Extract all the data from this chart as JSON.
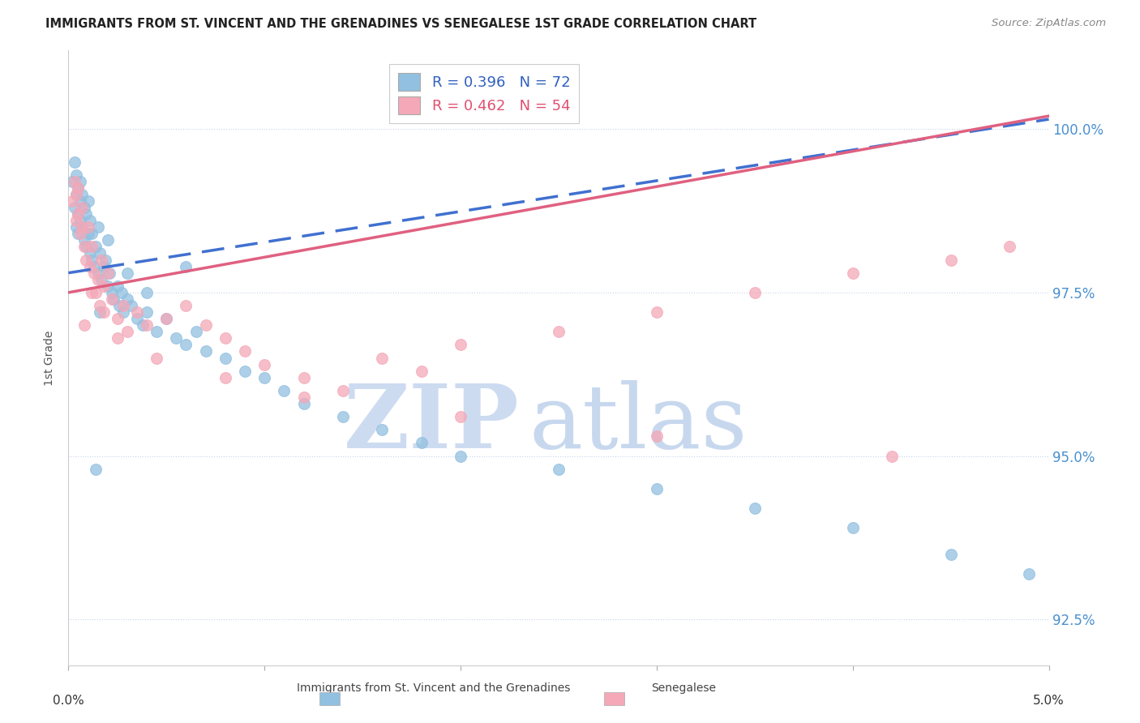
{
  "title": "IMMIGRANTS FROM ST. VINCENT AND THE GRENADINES VS SENEGALESE 1ST GRADE CORRELATION CHART",
  "source": "Source: ZipAtlas.com",
  "ylabel": "1st Grade",
  "yticks": [
    92.5,
    95.0,
    97.5,
    100.0
  ],
  "ytick_labels": [
    "92.5%",
    "95.0%",
    "97.5%",
    "100.0%"
  ],
  "xlim": [
    0.0,
    5.0
  ],
  "ylim": [
    91.8,
    101.2
  ],
  "blue_R": 0.396,
  "blue_N": 72,
  "pink_R": 0.462,
  "pink_N": 54,
  "blue_color": "#92c0e0",
  "pink_color": "#f4a8b8",
  "blue_line_color": "#4070d0",
  "pink_line_color": "#e06080",
  "watermark_zip": "ZIP",
  "watermark_atlas": "atlas",
  "watermark_color_zip": "#c8d8f0",
  "watermark_color_atlas": "#b0c8e8",
  "legend_label_blue": "Immigrants from St. Vincent and the Grenadines",
  "legend_label_pink": "Senegalese",
  "blue_line_x": [
    0.0,
    5.0
  ],
  "blue_line_y": [
    97.8,
    100.15
  ],
  "pink_line_x": [
    0.0,
    5.0
  ],
  "pink_line_y": [
    97.5,
    100.2
  ],
  "blue_x": [
    0.02,
    0.03,
    0.03,
    0.04,
    0.04,
    0.04,
    0.05,
    0.05,
    0.05,
    0.06,
    0.06,
    0.06,
    0.07,
    0.07,
    0.08,
    0.08,
    0.09,
    0.09,
    0.1,
    0.1,
    0.11,
    0.11,
    0.12,
    0.12,
    0.13,
    0.14,
    0.15,
    0.15,
    0.16,
    0.17,
    0.18,
    0.19,
    0.2,
    0.21,
    0.22,
    0.23,
    0.25,
    0.26,
    0.27,
    0.28,
    0.3,
    0.32,
    0.35,
    0.38,
    0.4,
    0.45,
    0.5,
    0.55,
    0.6,
    0.65,
    0.7,
    0.8,
    0.9,
    1.0,
    1.1,
    1.2,
    1.4,
    1.6,
    1.8,
    2.0,
    2.5,
    3.0,
    3.5,
    4.0,
    4.5,
    4.9,
    0.14,
    0.16,
    0.2,
    0.3,
    0.4,
    0.6
  ],
  "blue_y": [
    99.2,
    99.5,
    98.8,
    99.0,
    98.5,
    99.3,
    98.7,
    99.1,
    98.4,
    98.9,
    99.2,
    98.6,
    98.5,
    99.0,
    98.3,
    98.8,
    98.2,
    98.7,
    98.4,
    98.9,
    98.1,
    98.6,
    98.0,
    98.4,
    97.9,
    98.2,
    98.5,
    97.8,
    98.1,
    97.7,
    97.9,
    98.0,
    97.6,
    97.8,
    97.5,
    97.4,
    97.6,
    97.3,
    97.5,
    97.2,
    97.4,
    97.3,
    97.1,
    97.0,
    97.2,
    96.9,
    97.1,
    96.8,
    96.7,
    96.9,
    96.6,
    96.5,
    96.3,
    96.2,
    96.0,
    95.8,
    95.6,
    95.4,
    95.2,
    95.0,
    94.8,
    94.5,
    94.2,
    93.9,
    93.5,
    93.2,
    94.8,
    97.2,
    98.3,
    97.8,
    97.5,
    97.9
  ],
  "pink_x": [
    0.02,
    0.03,
    0.04,
    0.04,
    0.05,
    0.05,
    0.06,
    0.07,
    0.07,
    0.08,
    0.09,
    0.1,
    0.11,
    0.12,
    0.13,
    0.14,
    0.15,
    0.16,
    0.17,
    0.18,
    0.2,
    0.22,
    0.25,
    0.28,
    0.3,
    0.35,
    0.4,
    0.5,
    0.6,
    0.7,
    0.8,
    0.9,
    1.0,
    1.2,
    1.4,
    1.6,
    1.8,
    2.0,
    2.5,
    3.0,
    3.5,
    4.0,
    4.5,
    4.8,
    0.08,
    0.12,
    0.18,
    0.25,
    0.45,
    0.8,
    1.2,
    2.0,
    3.0,
    4.2
  ],
  "pink_y": [
    98.9,
    99.2,
    98.6,
    99.0,
    98.7,
    99.1,
    98.4,
    98.8,
    98.5,
    98.2,
    98.0,
    98.5,
    97.9,
    98.2,
    97.8,
    97.5,
    97.7,
    97.3,
    98.0,
    97.6,
    97.8,
    97.4,
    97.1,
    97.3,
    96.9,
    97.2,
    97.0,
    97.1,
    97.3,
    97.0,
    96.8,
    96.6,
    96.4,
    96.2,
    96.0,
    96.5,
    96.3,
    96.7,
    96.9,
    97.2,
    97.5,
    97.8,
    98.0,
    98.2,
    97.0,
    97.5,
    97.2,
    96.8,
    96.5,
    96.2,
    95.9,
    95.6,
    95.3,
    95.0
  ]
}
